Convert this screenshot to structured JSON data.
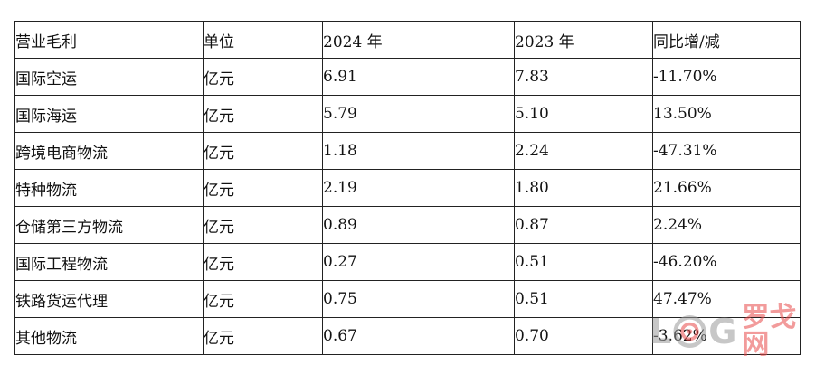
{
  "table": {
    "headers": [
      "营业毛利",
      "单位",
      "2024 年",
      "2023 年",
      "同比增/减"
    ],
    "rows": [
      [
        "国际空运",
        "亿元",
        "6.91",
        "7.83",
        "-11.70%"
      ],
      [
        "国际海运",
        "亿元",
        "5.79",
        "5.10",
        "13.50%"
      ],
      [
        "跨境电商物流",
        "亿元",
        "1.18",
        "2.24",
        "-47.31%"
      ],
      [
        "特种物流",
        "亿元",
        "2.19",
        "1.80",
        "21.66%"
      ],
      [
        "仓储第三方物流",
        "亿元",
        "0.89",
        "0.87",
        "2.24%"
      ],
      [
        "国际工程物流",
        "亿元",
        "0.27",
        "0.51",
        "-46.20%"
      ],
      [
        "铁路货运代理",
        "亿元",
        "0.75",
        "0.51",
        "47.47%"
      ],
      [
        "其他物流",
        "亿元",
        "0.67",
        "0.70",
        "-3.62%"
      ]
    ]
  },
  "watermark": {
    "letter_l": "L",
    "letter_g": "G",
    "cn_text": "罗戈网",
    "icon": "target-icon",
    "colors": {
      "gray": "#9a9a9a",
      "red": "#e84a4a"
    }
  }
}
